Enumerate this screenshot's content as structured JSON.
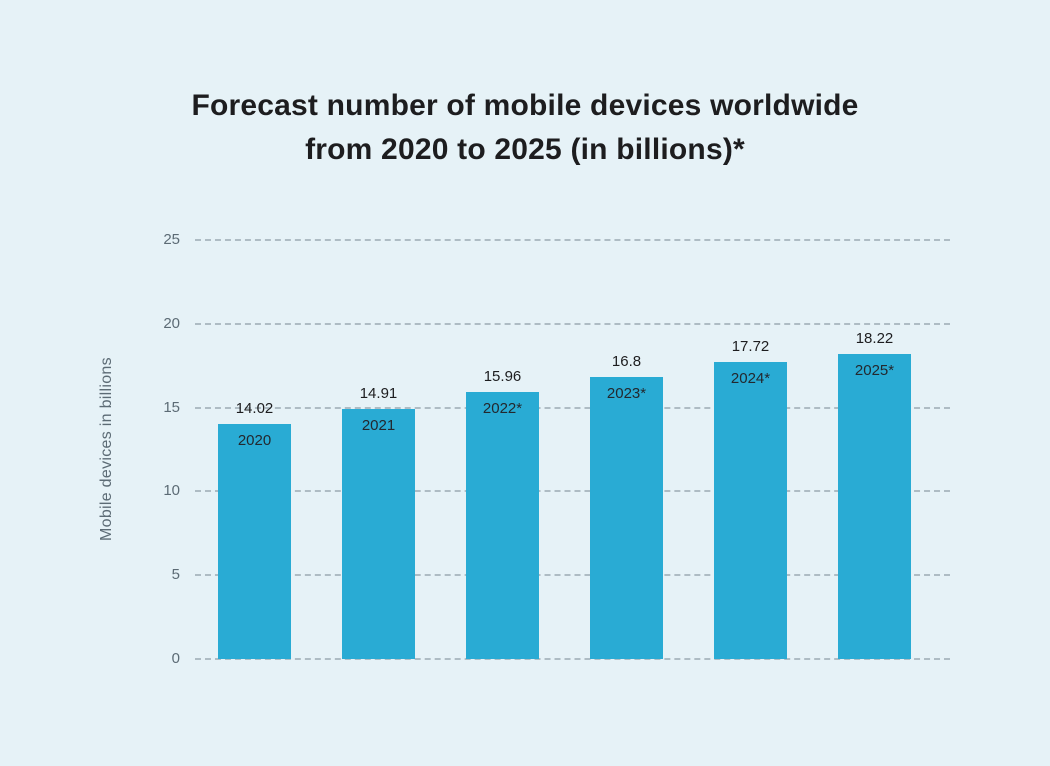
{
  "header": {
    "title_lines": [
      "Forecast number of mobile devices worldwide",
      "from 2020 to 2025 (in billions)*"
    ]
  },
  "chart_data": {
    "type": "bar",
    "title": "Forecast number of mobile devices worldwide from 2020 to 2025 (in billions)*",
    "categories": [
      "2020",
      "2021",
      "2022*",
      "2023*",
      "2024*",
      "2025*"
    ],
    "values": [
      14.02,
      14.91,
      15.96,
      16.8,
      17.72,
      18.22
    ],
    "value_labels": [
      "14.02",
      "14.91",
      "15.96",
      "16.8",
      "17.72",
      "18.22"
    ],
    "xlabel": "",
    "ylabel": "Mobile devices in billions",
    "ylim": [
      0,
      25
    ],
    "yticks": [
      0,
      5,
      10,
      15,
      20,
      25
    ],
    "grid": "horizontal-dashed",
    "legend": "none",
    "colors": {
      "bar": "#29abd4",
      "background": "#e6f2f7",
      "gridline": "#aebcc4",
      "axis_text": "#5c6b75",
      "value_label_text": "#1d1d1f",
      "title_text": "#1d1d1f"
    }
  }
}
